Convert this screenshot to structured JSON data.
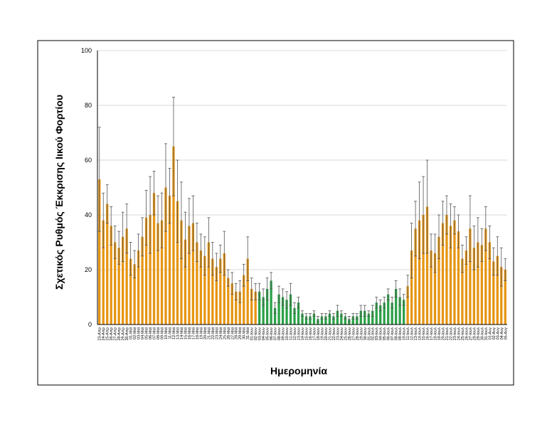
{
  "chart_data": {
    "type": "bar",
    "ylabel": "Σχετικός Ρυθμός Έκκρισης Ιικού Φορτίου",
    "xlabel": "Ημερομηνία",
    "ylim": [
      0,
      100
    ],
    "yticks": [
      0,
      20,
      40,
      60,
      80,
      100
    ],
    "grid": true,
    "categories": [
      "23-Απρ",
      "24-Απρ",
      "25-Απρ",
      "26-Απρ",
      "27-Απρ",
      "28-Απρ",
      "29-Απρ",
      "30-Απρ",
      "01-Μαϊ",
      "02-Μαϊ",
      "03-Μαϊ",
      "04-Μαϊ",
      "05-Μαϊ",
      "06-Μαϊ",
      "07-Μαϊ",
      "08-Μαϊ",
      "09-Μαϊ",
      "10-Μαϊ",
      "11-Μαϊ",
      "12-Μαϊ",
      "13-Μαϊ",
      "14-Μαϊ",
      "15-Μαϊ",
      "16-Μαϊ",
      "17-Μαϊ",
      "18-Μαϊ",
      "19-Μαϊ",
      "20-Μαϊ",
      "21-Μαϊ",
      "22-Μαϊ",
      "23-Μαϊ",
      "24-Μαϊ",
      "25-Μαϊ",
      "26-Μαϊ",
      "27-Μαϊ",
      "28-Μαϊ",
      "29-Μαϊ",
      "30-Μαϊ",
      "31-Μαϊ",
      "01-Ιουν",
      "02-Ιουν",
      "03-Ιουν",
      "04-Ιουν",
      "05-Ιουν",
      "06-Ιουν",
      "07-Ιουν",
      "08-Ιουν",
      "09-Ιουν",
      "10-Ιουν",
      "11-Ιουν",
      "12-Ιουν",
      "13-Ιουν",
      "14-Ιουν",
      "15-Ιουν",
      "16-Ιουν",
      "17-Ιουν",
      "18-Ιουν",
      "19-Ιουν",
      "20-Ιουν",
      "21-Ιουν",
      "22-Ιουν",
      "23-Ιουν",
      "24-Ιουν",
      "25-Ιουν",
      "26-Ιουν",
      "27-Ιουν",
      "28-Ιουν",
      "29-Ιουν",
      "30-Ιουν",
      "01-Ιουλ",
      "02-Ιουλ",
      "03-Ιουλ",
      "04-Ιουλ",
      "05-Ιουλ",
      "06-Ιουλ",
      "07-Ιουλ",
      "08-Ιουλ",
      "09-Ιουλ",
      "10-Ιουλ",
      "11-Ιουλ",
      "12-Ιουλ",
      "13-Ιουλ",
      "14-Ιουλ",
      "15-Ιουλ",
      "16-Ιουλ",
      "17-Ιουλ",
      "18-Ιουλ",
      "19-Ιουλ",
      "20-Ιουλ",
      "21-Ιουλ",
      "22-Ιουλ",
      "23-Ιουλ",
      "24-Ιουλ",
      "25-Ιουλ",
      "26-Ιουλ",
      "27-Ιουλ",
      "28-Ιουλ",
      "29-Ιουλ",
      "30-Ιουλ",
      "31-Ιουλ",
      "01-Αυγ",
      "02-Αυγ",
      "03-Αυγ",
      "04-Αυγ",
      "05-Αυγ"
    ],
    "values": [
      53,
      38,
      44,
      36,
      30,
      28,
      32,
      35,
      24,
      22,
      27,
      32,
      39,
      40,
      48,
      37,
      38,
      50,
      47,
      65,
      45,
      38,
      31,
      36,
      37,
      30,
      27,
      25,
      30,
      24,
      21,
      24,
      26,
      17,
      15,
      12,
      12,
      18,
      24,
      13,
      12,
      12,
      10,
      13,
      16,
      6,
      11,
      10,
      9,
      11,
      6,
      8,
      4,
      3,
      3,
      4,
      2,
      3,
      3,
      4,
      3,
      5,
      4,
      3,
      2,
      3,
      3,
      5,
      5,
      4,
      5,
      8,
      7,
      8,
      11,
      8,
      13,
      10,
      9,
      14,
      27,
      35,
      38,
      40,
      43,
      27,
      26,
      32,
      37,
      40,
      36,
      38,
      34,
      24,
      27,
      35,
      28,
      30,
      29,
      35,
      30,
      23,
      25,
      21,
      20
    ],
    "errors": [
      19,
      10,
      7,
      7,
      6,
      6,
      9,
      9,
      6,
      5,
      6,
      7,
      10,
      14,
      8,
      10,
      10,
      16,
      10,
      18,
      15,
      14,
      10,
      10,
      10,
      7,
      6,
      7,
      9,
      6,
      5,
      5,
      8,
      3,
      4,
      3,
      4,
      4,
      8,
      4,
      3,
      3,
      3,
      4,
      3,
      2,
      3,
      3,
      3,
      4,
      2,
      2,
      1,
      1,
      1,
      1,
      1,
      1,
      1,
      1,
      1,
      2,
      1,
      1,
      1,
      1,
      1,
      2,
      2,
      1,
      2,
      2,
      2,
      2,
      2,
      2,
      3,
      3,
      2,
      4,
      10,
      10,
      14,
      14,
      17,
      6,
      7,
      8,
      8,
      7,
      8,
      5,
      6,
      5,
      5,
      12,
      8,
      9,
      6,
      8,
      6,
      5,
      7,
      7,
      4
    ],
    "colors": [
      "#e69512",
      "#e69512",
      "#e69512",
      "#e69512",
      "#e69512",
      "#e69512",
      "#e69512",
      "#e69512",
      "#e69512",
      "#e69512",
      "#e69512",
      "#e69512",
      "#e69512",
      "#e69512",
      "#e69512",
      "#e69512",
      "#e69512",
      "#e69512",
      "#e69512",
      "#e69512",
      "#e69512",
      "#e69512",
      "#e69512",
      "#e69512",
      "#e69512",
      "#e69512",
      "#e69512",
      "#e69512",
      "#e69512",
      "#e69512",
      "#e69512",
      "#e69512",
      "#e69512",
      "#e69512",
      "#e69512",
      "#e69512",
      "#e69512",
      "#e69512",
      "#e69512",
      "#e69512",
      "#e69512",
      "#2ca048",
      "#2ca048",
      "#2ca048",
      "#2ca048",
      "#2ca048",
      "#2ca048",
      "#2ca048",
      "#2ca048",
      "#2ca048",
      "#2ca048",
      "#2ca048",
      "#2ca048",
      "#2ca048",
      "#2ca048",
      "#2ca048",
      "#2ca048",
      "#2ca048",
      "#2ca048",
      "#2ca048",
      "#2ca048",
      "#2ca048",
      "#2ca048",
      "#2ca048",
      "#2ca048",
      "#2ca048",
      "#2ca048",
      "#2ca048",
      "#2ca048",
      "#2ca048",
      "#2ca048",
      "#2ca048",
      "#2ca048",
      "#2ca048",
      "#2ca048",
      "#2ca048",
      "#2ca048",
      "#2ca048",
      "#2ca048",
      "#e69512",
      "#e69512",
      "#e69512",
      "#e69512",
      "#e69512",
      "#e69512",
      "#e69512",
      "#e69512",
      "#e69512",
      "#e69512",
      "#e69512",
      "#e69512",
      "#e69512",
      "#e69512",
      "#e69512",
      "#e69512",
      "#e69512",
      "#e69512",
      "#e69512",
      "#e69512",
      "#e69512",
      "#e69512",
      "#e69512",
      "#e69512",
      "#e69512",
      "#e69512"
    ]
  }
}
